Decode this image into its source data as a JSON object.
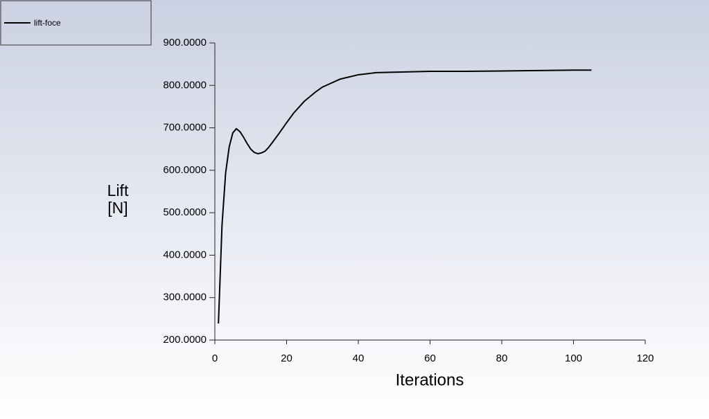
{
  "chart_data": {
    "type": "line",
    "xlabel": "Iterations",
    "ylabel": "Lift [N]",
    "x": [
      1,
      2,
      3,
      4,
      5,
      6,
      7,
      8,
      9,
      10,
      11,
      12,
      13,
      14,
      15,
      16,
      18,
      20,
      22,
      25,
      28,
      30,
      35,
      40,
      45,
      50,
      60,
      70,
      80,
      90,
      100,
      105
    ],
    "series": [
      {
        "name": "lift-foce",
        "color": "#000000",
        "values": [
          239,
          471,
          593,
          655,
          688,
          698,
          691,
          678,
          663,
          650,
          642,
          639,
          641,
          645,
          654,
          665,
          688,
          712,
          735,
          763,
          784,
          796,
          815,
          825,
          830,
          831,
          833,
          833,
          834,
          835,
          836,
          836
        ]
      }
    ],
    "xlim": [
      0,
      120
    ],
    "xticks": [
      0,
      20,
      40,
      60,
      80,
      100,
      120
    ],
    "ylim": [
      200,
      900
    ],
    "yticks": [
      {
        "value": 200,
        "label": "200.0000"
      },
      {
        "value": 300,
        "label": "300.0000"
      },
      {
        "value": 400,
        "label": "400.0000"
      },
      {
        "value": 500,
        "label": "500.0000"
      },
      {
        "value": 600,
        "label": "600.0000"
      },
      {
        "value": 700,
        "label": "700.0000"
      },
      {
        "value": 800,
        "label": "800.0000"
      },
      {
        "value": 900,
        "label": "900.0000"
      }
    ],
    "legend": "top-left"
  }
}
